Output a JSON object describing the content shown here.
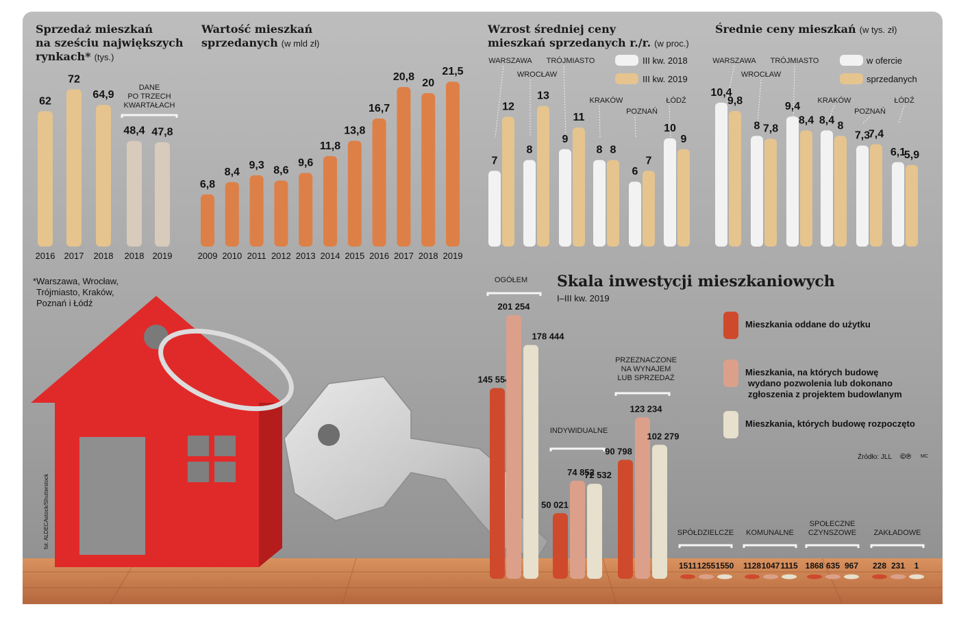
{
  "colors": {
    "bg": "#a9a9a9",
    "gold": "#e6c48e",
    "greige": "#d8cbbc",
    "orange": "#dd8048",
    "white_bar": "#f2f2f2",
    "red": "#cf4a2c",
    "pink": "#dca08a",
    "cream": "#e6e0cc",
    "house": "#e02a2a",
    "floor": "#c9794a",
    "red_text": "#a01515"
  },
  "chart_data": [
    {
      "id": "sales",
      "type": "bar",
      "title": "Sprzedaż mieszkań na sześciu największych rynkach*",
      "title_lines": [
        "Sprzedaż mieszkań",
        "na sześciu największych",
        "rynkach*"
      ],
      "unit": "(tys.)",
      "categories": [
        "2016",
        "2017",
        "2018",
        "2018",
        "2019"
      ],
      "values": [
        62,
        72,
        64.9,
        48.4,
        47.8
      ],
      "value_labels": [
        "62",
        "72",
        "64,9",
        "48,4",
        "47,8"
      ],
      "annotation_lines": [
        "DANE",
        "PO TRZECH",
        "KWARTAŁACH"
      ],
      "footnote_lines": [
        "*Warszawa, Wrocław,",
        "Trójmiasto, Kraków,",
        "Poznań i Łódź"
      ],
      "ylim": [
        0,
        80
      ]
    },
    {
      "id": "value",
      "type": "bar",
      "title": "Wartość mieszkań sprzedanych",
      "title_lines": [
        "Wartość mieszkań",
        "sprzedanych"
      ],
      "unit": "(w mld zł)",
      "categories": [
        "2009",
        "2010",
        "2011",
        "2012",
        "2013",
        "2014",
        "2015",
        "2016",
        "2017",
        "2018",
        "2019"
      ],
      "values": [
        6.8,
        8.4,
        9.3,
        8.6,
        9.6,
        11.8,
        13.8,
        16.7,
        20.8,
        20,
        21.5
      ],
      "value_labels": [
        "6,8",
        "8,4",
        "9,3",
        "8,6",
        "9,6",
        "11,8",
        "13,8",
        "16,7",
        "20,8",
        "20",
        "21,5"
      ],
      "ylim": [
        0,
        24
      ]
    },
    {
      "id": "growth",
      "type": "bar",
      "title": "Wzrost średniej ceny mieszkań sprzedanych r./r.",
      "title_lines": [
        "Wzrost średniej ceny",
        "mieszkań sprzedanych r./r."
      ],
      "unit": "(w proc.)",
      "categories": [
        "WARSZAWA",
        "WROCŁAW",
        "TRÓJMIASTO",
        "KRAKÓW",
        "POZNAŃ",
        "ŁÓDŹ"
      ],
      "series": [
        {
          "name": "III kw. 2018",
          "values": [
            7,
            8,
            9,
            8,
            6,
            10
          ],
          "labels": [
            "7",
            "8",
            "9",
            "8",
            "6",
            "10"
          ]
        },
        {
          "name": "III kw. 2019",
          "values": [
            12,
            13,
            11,
            8,
            7,
            9
          ],
          "labels": [
            "12",
            "13",
            "11",
            "8",
            "7",
            "9"
          ]
        }
      ],
      "ylim": [
        0,
        16
      ]
    },
    {
      "id": "prices",
      "type": "bar",
      "title": "Średnie ceny mieszkań",
      "title_lines": [
        "Średnie ceny mieszkań"
      ],
      "unit": "(w tys. zł)",
      "categories": [
        "WARSZAWA",
        "WROCŁAW",
        "TRÓJMIASTO",
        "KRAKÓW",
        "POZNAŃ",
        "ŁÓDŹ"
      ],
      "series": [
        {
          "name": "w ofercie",
          "values": [
            10.4,
            8,
            9.4,
            8.4,
            7.3,
            6.1
          ],
          "labels": [
            "10,4",
            "8",
            "9,4",
            "8,4",
            "7,3",
            "6,1"
          ]
        },
        {
          "name": "sprzedanych",
          "values": [
            9.8,
            7.8,
            8.4,
            8,
            7.4,
            5.9
          ],
          "labels": [
            "9,8",
            "7,8",
            "8,4",
            "8",
            "7,4",
            "5,9"
          ]
        }
      ],
      "ylim": [
        0,
        12
      ]
    },
    {
      "id": "invest",
      "type": "bar",
      "title": "Skala inwestycji mieszkaniowych",
      "subtitle": "I–III kw. 2019",
      "legend": [
        {
          "lines": [
            "Mieszkania oddane do użytku"
          ]
        },
        {
          "lines": [
            "Mieszkania, na których budowę",
            "wydano pozwolenia lub dokonano",
            "zgłoszenia z projektem budowlanym"
          ]
        },
        {
          "lines": [
            "Mieszkania, których budowę rozpoczęto"
          ]
        }
      ],
      "groups": [
        {
          "name_lines": [
            "OGÓŁEM"
          ],
          "values": [
            145554,
            201254,
            178444
          ],
          "labels": [
            "145 554",
            "201 254",
            "178 444"
          ]
        },
        {
          "name_lines": [
            "INDYWIDUALNE"
          ],
          "values": [
            50021,
            74852,
            72532
          ],
          "labels": [
            "50 021",
            "74 852",
            "72 532"
          ]
        },
        {
          "name_lines": [
            "PRZEZNACZONE",
            "NA WYNAJEM",
            "LUB SPRZEDAŻ"
          ],
          "values": [
            90798,
            123234,
            102279
          ],
          "labels": [
            "90 798",
            "123 234",
            "102 279"
          ]
        }
      ],
      "small_groups": [
        {
          "name_lines": [
            "SPÓŁDZIELCZE"
          ],
          "labels": [
            "1511",
            "1255",
            "1550"
          ]
        },
        {
          "name_lines": [
            "KOMUNALNE"
          ],
          "labels": [
            "1128",
            "1047",
            "1115"
          ]
        },
        {
          "name_lines": [
            "SPOŁECZNE",
            "CZYNSZOWE"
          ],
          "labels": [
            "1868",
            "635",
            "967"
          ]
        },
        {
          "name_lines": [
            "ZAKŁADOWE"
          ],
          "labels": [
            "228",
            "231",
            "1"
          ]
        }
      ],
      "source": "Źródło: JLL",
      "logo": "©℗",
      "author": "MC",
      "ylim": [
        0,
        210000
      ]
    }
  ],
  "photo_credit": "fot. ALDECAstock/Shutterstock"
}
